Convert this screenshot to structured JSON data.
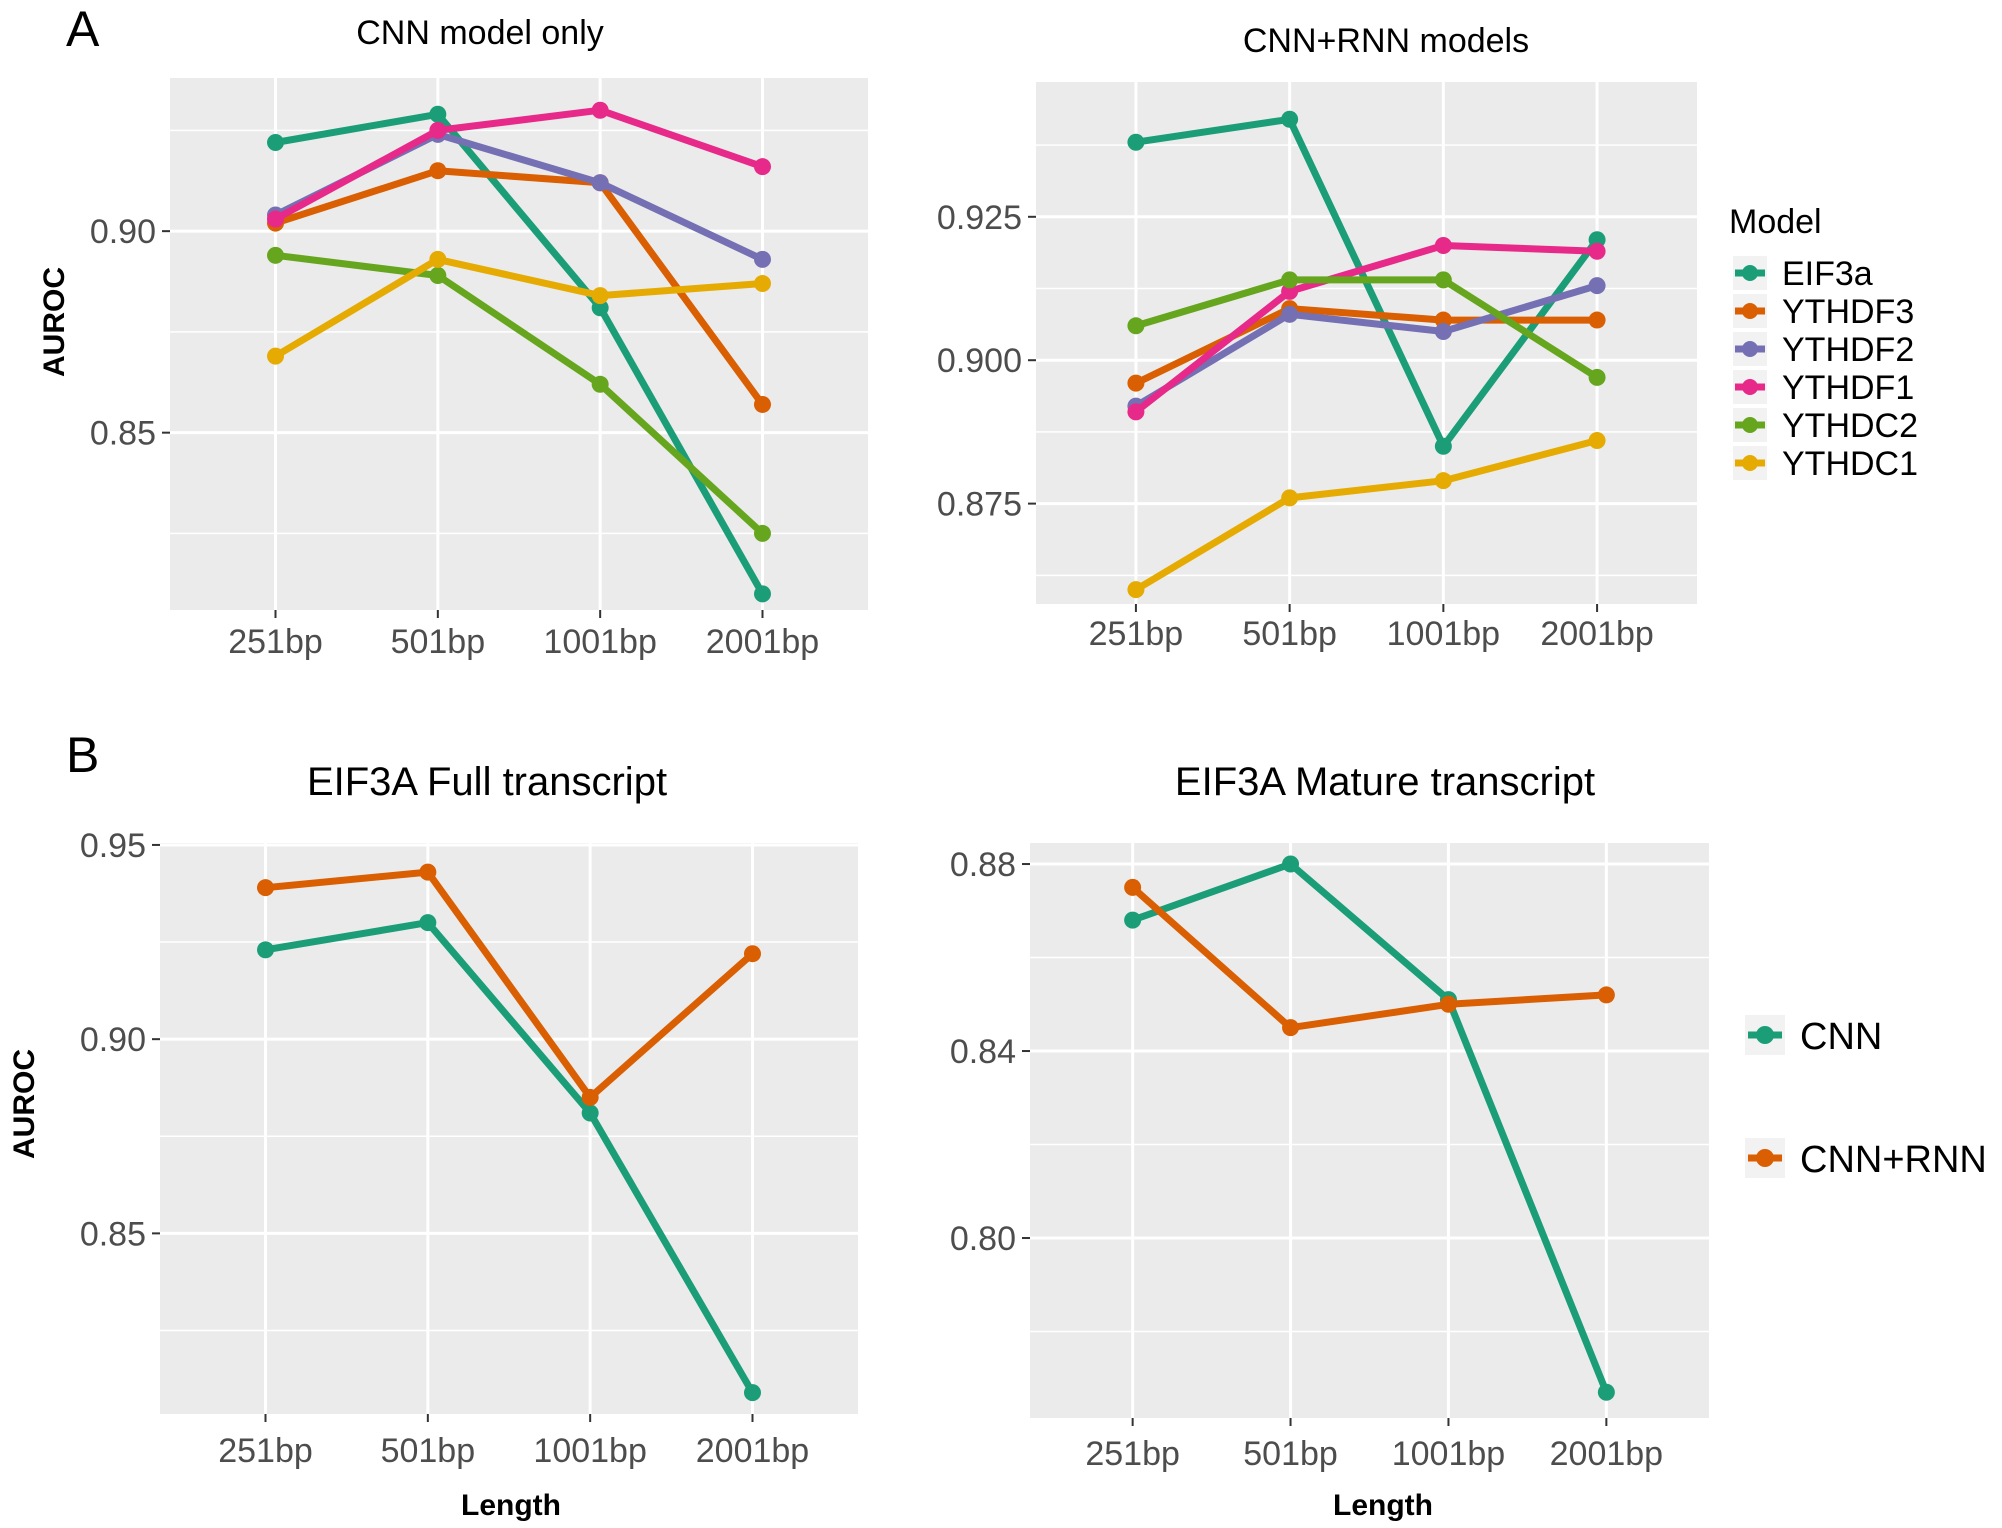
{
  "figure": {
    "tags": [
      "A",
      "B"
    ],
    "legend_a": {
      "title": "Model",
      "entries": [
        {
          "name": "EIF3a",
          "color": "#1b9e77"
        },
        {
          "name": "YTHDF3",
          "color": "#d95f02"
        },
        {
          "name": "YTHDF2",
          "color": "#7570b3"
        },
        {
          "name": "YTHDF1",
          "color": "#e7298a"
        },
        {
          "name": "YTHDC2",
          "color": "#66a61e"
        },
        {
          "name": "YTHDC1",
          "color": "#e6ab02"
        }
      ]
    },
    "legend_b": {
      "entries": [
        {
          "name": "CNN",
          "color": "#1b9e77"
        },
        {
          "name": "CNN+RNN",
          "color": "#d95f02"
        }
      ]
    }
  },
  "chart_data": [
    {
      "type": "line",
      "id": "panel-a-left",
      "title": "CNN model only",
      "xlabel": "",
      "ylabel": "AUROC",
      "categories": [
        "251bp",
        "501bp",
        "1001bp",
        "2001bp"
      ],
      "ylim": [
        0.806,
        0.938
      ],
      "yticks": [
        0.85,
        0.9
      ],
      "ytick_labels": [
        "0.85",
        "0.90"
      ],
      "grid": true,
      "series": [
        {
          "name": "EIF3a",
          "color": "#1b9e77",
          "values": [
            0.922,
            0.929,
            0.881,
            0.81
          ]
        },
        {
          "name": "YTHDF3",
          "color": "#d95f02",
          "values": [
            0.902,
            0.915,
            0.912,
            0.857
          ]
        },
        {
          "name": "YTHDF2",
          "color": "#7570b3",
          "values": [
            0.904,
            0.924,
            0.912,
            0.893
          ]
        },
        {
          "name": "YTHDF1",
          "color": "#e7298a",
          "values": [
            0.903,
            0.925,
            0.93,
            0.916
          ]
        },
        {
          "name": "YTHDC2",
          "color": "#66a61e",
          "values": [
            0.894,
            0.889,
            0.862,
            0.825
          ]
        },
        {
          "name": "YTHDC1",
          "color": "#e6ab02",
          "values": [
            0.869,
            0.893,
            0.884,
            0.887
          ]
        }
      ]
    },
    {
      "type": "line",
      "id": "panel-a-right",
      "title": "CNN+RNN models",
      "xlabel": "",
      "ylabel": "",
      "categories": [
        "251bp",
        "501bp",
        "1001bp",
        "2001bp"
      ],
      "ylim": [
        0.8575,
        0.9485
      ],
      "yticks": [
        0.875,
        0.9,
        0.925
      ],
      "ytick_labels": [
        "0.875",
        "0.900",
        "0.925"
      ],
      "grid": true,
      "legend": "right",
      "series": [
        {
          "name": "EIF3a",
          "color": "#1b9e77",
          "values": [
            0.938,
            0.942,
            0.885,
            0.921
          ]
        },
        {
          "name": "YTHDF3",
          "color": "#d95f02",
          "values": [
            0.896,
            0.909,
            0.907,
            0.907
          ]
        },
        {
          "name": "YTHDF2",
          "color": "#7570b3",
          "values": [
            0.892,
            0.908,
            0.905,
            0.913
          ]
        },
        {
          "name": "YTHDF1",
          "color": "#e7298a",
          "values": [
            0.891,
            0.912,
            0.92,
            0.919
          ]
        },
        {
          "name": "YTHDC2",
          "color": "#66a61e",
          "values": [
            0.906,
            0.914,
            0.914,
            0.897
          ]
        },
        {
          "name": "YTHDC1",
          "color": "#e6ab02",
          "values": [
            0.86,
            0.876,
            0.879,
            0.886
          ]
        }
      ]
    },
    {
      "type": "line",
      "id": "panel-b-left",
      "title": "EIF3A Full transcript",
      "xlabel": "Length",
      "ylabel": "AUROC",
      "categories": [
        "251bp",
        "501bp",
        "1001bp",
        "2001bp"
      ],
      "ylim": [
        0.8035,
        0.9505
      ],
      "yticks": [
        0.85,
        0.9,
        0.95
      ],
      "ytick_labels": [
        "0.85",
        "0.90",
        "0.95"
      ],
      "grid": true,
      "series": [
        {
          "name": "CNN",
          "color": "#1b9e77",
          "values": [
            0.923,
            0.93,
            0.881,
            0.809
          ]
        },
        {
          "name": "CNN+RNN",
          "color": "#d95f02",
          "values": [
            0.939,
            0.943,
            0.885,
            0.922
          ]
        }
      ]
    },
    {
      "type": "line",
      "id": "panel-b-right",
      "title": "EIF3A Mature transcript",
      "xlabel": "Length",
      "ylabel": "",
      "categories": [
        "251bp",
        "501bp",
        "1001bp",
        "2001bp"
      ],
      "ylim": [
        0.7615,
        0.8845
      ],
      "yticks": [
        0.8,
        0.84,
        0.88
      ],
      "ytick_labels": [
        "0.80",
        "0.84",
        "0.88"
      ],
      "grid": true,
      "legend": "right",
      "series": [
        {
          "name": "CNN",
          "color": "#1b9e77",
          "values": [
            0.868,
            0.88,
            0.851,
            0.767
          ]
        },
        {
          "name": "CNN+RNN",
          "color": "#d95f02",
          "values": [
            0.875,
            0.845,
            0.85,
            0.852
          ]
        }
      ]
    }
  ]
}
